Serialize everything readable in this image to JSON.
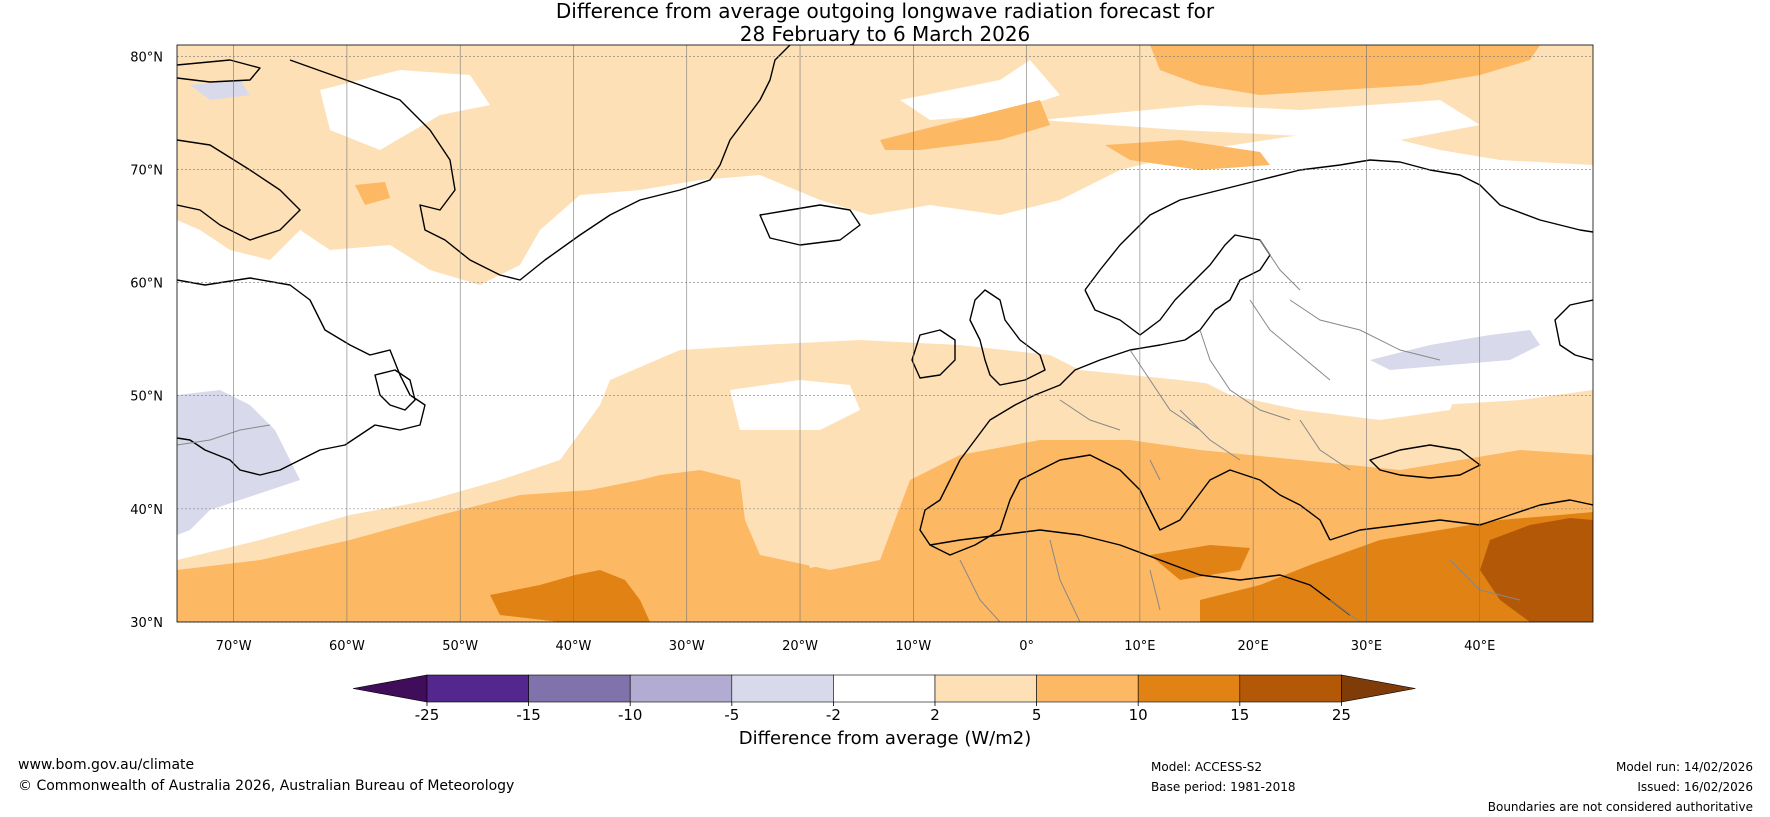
{
  "title": {
    "line1": "Difference from average outgoing longwave radiation forecast for",
    "line2": "28 February to 6 March 2026"
  },
  "map": {
    "lat_labels": [
      "80°N",
      "70°N",
      "60°N",
      "50°N",
      "40°N",
      "30°N"
    ],
    "lat_values": [
      80,
      70,
      60,
      50,
      40,
      30
    ],
    "lon_labels": [
      "70°W",
      "60°W",
      "50°W",
      "40°W",
      "30°W",
      "20°W",
      "10°W",
      "0°",
      "10°E",
      "20°E",
      "30°E",
      "40°E"
    ],
    "lon_values": [
      -70,
      -60,
      -50,
      -40,
      -30,
      -20,
      -10,
      0,
      10,
      20,
      30,
      40
    ],
    "extent": {
      "lon_min": -75,
      "lon_max": 50,
      "lat_min": 30,
      "lat_max": 81
    }
  },
  "colorbar": {
    "title": "Difference from average (W/m2)",
    "ticks": [
      "-25",
      "-15",
      "-10",
      "-5",
      "-2",
      "2",
      "5",
      "10",
      "15",
      "25"
    ],
    "colors": [
      "#3f0d5a",
      "#54278f",
      "#8073ac",
      "#b2abd2",
      "#d8daeb",
      "#ffffff",
      "#fee0b6",
      "#fdb863",
      "#e08214",
      "#b35806",
      "#7f3b08"
    ]
  },
  "footer": {
    "website": "www.bom.gov.au/climate",
    "copyright": "© Commonwealth of Australia 2026, Australian Bureau of Meteorology",
    "model": "Model: ACCESS-S2",
    "base_period": "Base period: 1981-2018",
    "model_run": "Model run: 14/02/2026",
    "issued": "Issued: 16/02/2026",
    "disclaimer": "Boundaries are not considered authoritative"
  }
}
